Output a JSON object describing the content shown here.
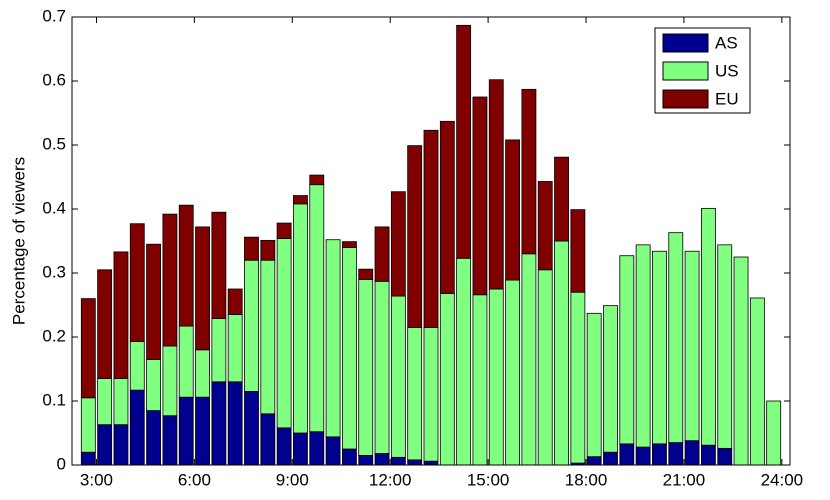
{
  "chart_data": {
    "type": "stacked-bar",
    "y_label": "Percentage of viewers",
    "x": [
      2.75,
      3.25,
      3.75,
      4.25,
      4.75,
      5.25,
      5.75,
      6.25,
      6.75,
      7.25,
      7.75,
      8.25,
      8.75,
      9.25,
      9.75,
      10.25,
      10.75,
      11.25,
      11.75,
      12.25,
      12.75,
      13.25,
      13.75,
      14.25,
      14.75,
      15.25,
      15.75,
      16.25,
      16.75,
      17.25,
      17.75,
      18.25,
      18.75,
      19.25,
      19.75,
      20.25,
      20.75,
      21.25,
      21.75,
      22.25,
      22.75,
      23.25,
      23.75
    ],
    "series": [
      {
        "name": "AS",
        "color": "#00008f",
        "values": [
          0.02,
          0.063,
          0.063,
          0.117,
          0.085,
          0.077,
          0.106,
          0.106,
          0.13,
          0.13,
          0.115,
          0.08,
          0.058,
          0.05,
          0.052,
          0.044,
          0.025,
          0.015,
          0.018,
          0.012,
          0.008,
          0.006,
          0,
          0,
          0,
          0,
          0,
          0,
          0,
          0,
          0.003,
          0.013,
          0.02,
          0.033,
          0.028,
          0.033,
          0.035,
          0.038,
          0.031,
          0.026,
          0,
          0,
          0
        ]
      },
      {
        "name": "US",
        "color": "#80ff80",
        "values": [
          0.085,
          0.072,
          0.072,
          0.076,
          0.08,
          0.109,
          0.111,
          0.074,
          0.099,
          0.105,
          0.205,
          0.24,
          0.296,
          0.358,
          0.386,
          0.308,
          0.315,
          0.275,
          0.269,
          0.252,
          0.207,
          0.209,
          0.268,
          0.323,
          0.266,
          0.275,
          0.289,
          0.33,
          0.305,
          0.35,
          0.267,
          0.224,
          0.229,
          0.294,
          0.316,
          0.301,
          0.328,
          0.296,
          0.37,
          0.318,
          0.325,
          0.261,
          0.1
        ]
      },
      {
        "name": "EU",
        "color": "#800000",
        "values": [
          0.155,
          0.17,
          0.198,
          0.184,
          0.18,
          0.206,
          0.189,
          0.192,
          0.166,
          0.04,
          0.036,
          0.031,
          0.024,
          0.013,
          0.015,
          0,
          0.009,
          0.016,
          0.085,
          0.163,
          0.284,
          0.308,
          0.269,
          0.364,
          0.309,
          0.327,
          0.219,
          0.257,
          0.138,
          0.131,
          0.129,
          0,
          0,
          0,
          0,
          0,
          0,
          0,
          0,
          0,
          0,
          0,
          0
        ]
      }
    ],
    "xlim": [
      2.25,
      24.25
    ],
    "xticks": [
      {
        "value": 3,
        "label": "3:00"
      },
      {
        "value": 6,
        "label": "6:00"
      },
      {
        "value": 9,
        "label": "9:00"
      },
      {
        "value": 12,
        "label": "12:00"
      },
      {
        "value": 15,
        "label": "15:00"
      },
      {
        "value": 18,
        "label": "18:00"
      },
      {
        "value": 21,
        "label": "21:00"
      },
      {
        "value": 24,
        "label": "24:00"
      }
    ],
    "ylim": [
      0,
      0.7
    ],
    "yticks": [
      0,
      0.1,
      0.2,
      0.3,
      0.4,
      0.5,
      0.6,
      0.7
    ],
    "legend": "upper right"
  }
}
